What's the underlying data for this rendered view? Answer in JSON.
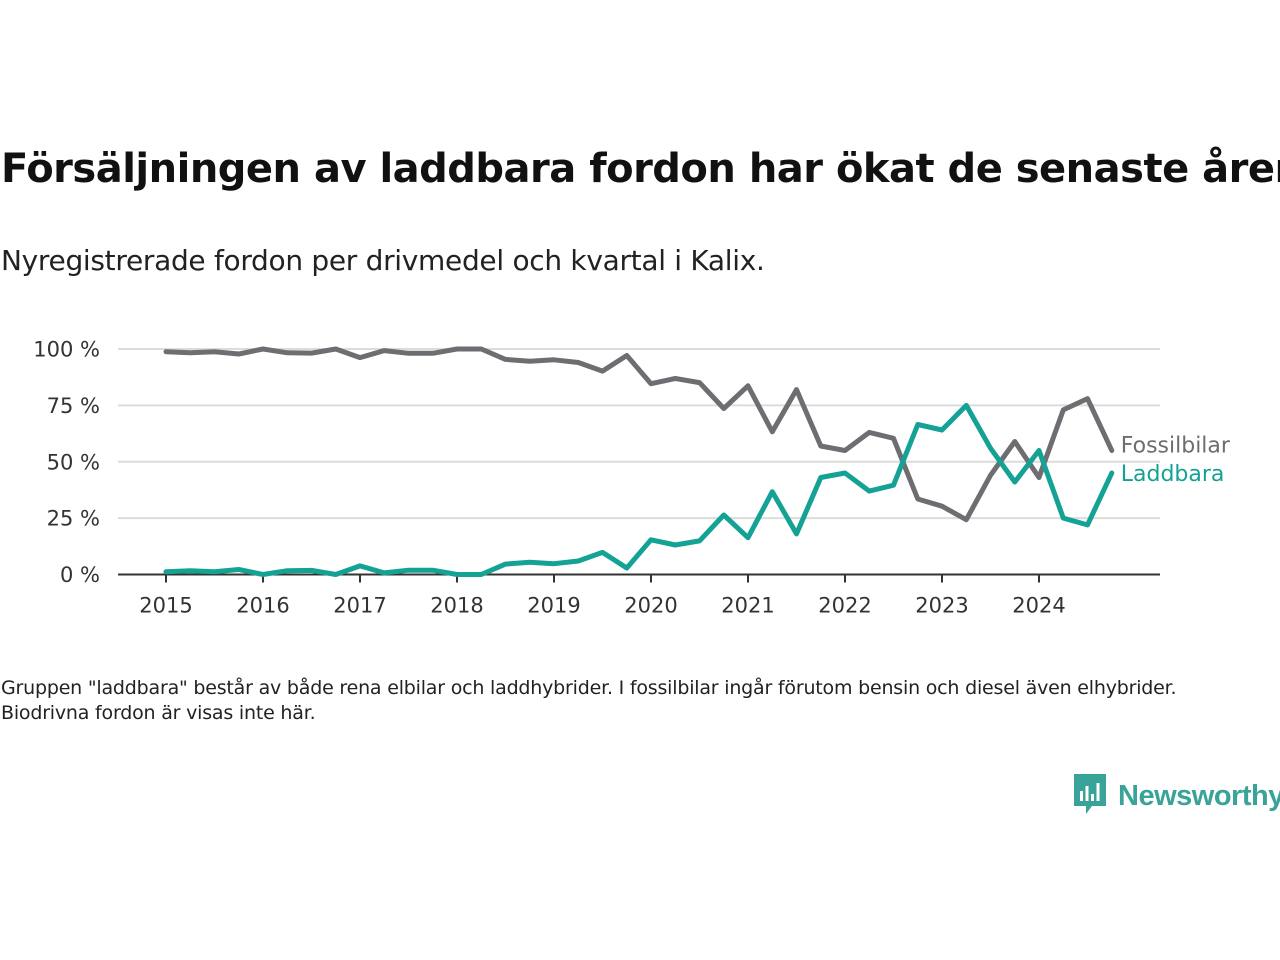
{
  "title": "Försäljningen av laddbara fordon har ökat de senaste åren",
  "subtitle": "Nyregistrerade fordon per drivmedel och kvartal i Kalix.",
  "note": "Gruppen \"laddbara\" består av både rena elbilar och laddhybrider. I fossilbilar ingår förutom bensin och diesel även elhybrider. Biodrivna fordon är visas inte här.",
  "brand": {
    "name": "Newsworthy",
    "icon": "newsworthy-logo-icon",
    "color": "#3aa399"
  },
  "chart_data": {
    "type": "line",
    "x_tick_labels": [
      "2015",
      "2016",
      "2017",
      "2018",
      "2019",
      "2020",
      "2021",
      "2022",
      "2023",
      "2024"
    ],
    "x_start_year": 2015,
    "periods_per_year": 4,
    "y_ticks": [
      0,
      25,
      50,
      75,
      100
    ],
    "y_tick_labels": [
      "0 %",
      "25 %",
      "50 %",
      "75 %",
      "100 %"
    ],
    "ylim": [
      0,
      100
    ],
    "grid": true,
    "legend": "inline labels at line ends",
    "series": [
      {
        "name": "Fossilbilar",
        "color": "#6e6d72",
        "values": [
          98.8,
          98.3,
          98.8,
          97.8,
          100,
          98.3,
          98.2,
          100,
          96.2,
          99.3,
          98.1,
          98.1,
          100,
          100,
          95.4,
          94.6,
          95.2,
          94.0,
          90.2,
          97.1,
          84.6,
          86.9,
          85.1,
          73.6,
          83.7,
          63.3,
          82.0,
          57.0,
          55.0,
          63.0,
          60.4,
          33.5,
          30.3,
          24.3,
          44.0,
          59.0,
          43.0,
          73.0,
          78.0,
          55.0
        ]
      },
      {
        "name": "Laddbara",
        "color": "#14a295",
        "values": [
          1.2,
          1.7,
          1.2,
          2.2,
          0,
          1.7,
          1.8,
          0,
          3.8,
          0.7,
          1.9,
          1.9,
          0,
          0,
          4.6,
          5.4,
          4.8,
          6.0,
          9.8,
          2.9,
          15.4,
          13.1,
          14.9,
          26.4,
          16.3,
          36.7,
          18.0,
          43.0,
          45.0,
          37.0,
          39.6,
          66.5,
          64.1,
          75.0,
          56.0,
          41.0,
          55.0,
          25.0,
          22.0,
          45.0
        ]
      }
    ]
  }
}
